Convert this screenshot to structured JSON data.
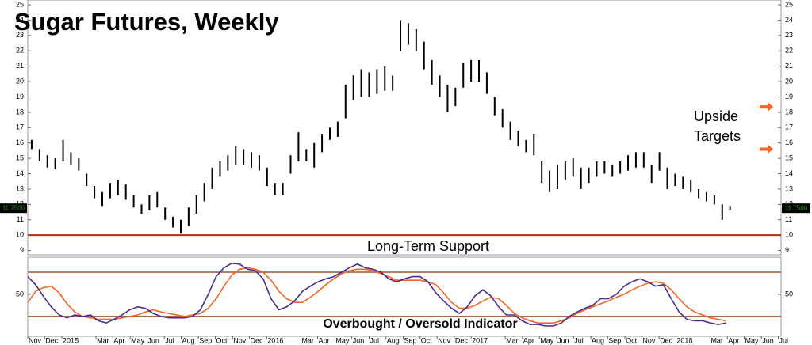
{
  "chart_data": [
    {
      "type": "ohlc",
      "title": "Sugar Futures, Weekly",
      "color": "#000000",
      "x": [
        1,
        3,
        5,
        7,
        9,
        11,
        13,
        15,
        17,
        19,
        21,
        23,
        25,
        27,
        29,
        31,
        33,
        35,
        37,
        39,
        41,
        43,
        45,
        47,
        49,
        51,
        53,
        55,
        57,
        59,
        61,
        63,
        65,
        67,
        69,
        71,
        73,
        75,
        77,
        79,
        81,
        83,
        85,
        87,
        89,
        91,
        93,
        95,
        97,
        99,
        101,
        103,
        105,
        107,
        109,
        111,
        113,
        115,
        117,
        119,
        121,
        123,
        125,
        127,
        129,
        131,
        133,
        135,
        137,
        139,
        141,
        143,
        145,
        147,
        149,
        151,
        153,
        155,
        157,
        159,
        161,
        163,
        165,
        167,
        169,
        171,
        173,
        175,
        177,
        179
      ],
      "high": [
        16.2,
        15.6,
        15.2,
        15.0,
        16.2,
        15.4,
        15.0,
        14.0,
        13.2,
        12.8,
        13.4,
        13.6,
        13.3,
        12.6,
        12.0,
        12.6,
        12.8,
        11.8,
        11.2,
        11.0,
        11.8,
        12.6,
        13.4,
        14.4,
        14.8,
        15.2,
        15.8,
        15.6,
        15.4,
        15.2,
        14.4,
        13.4,
        13.4,
        15.2,
        16.7,
        15.6,
        16.0,
        16.6,
        17.0,
        17.4,
        19.8,
        20.4,
        20.8,
        20.6,
        20.8,
        21.0,
        20.4,
        24.0,
        23.8,
        23.4,
        22.6,
        21.4,
        20.4,
        19.8,
        19.6,
        21.2,
        21.4,
        21.4,
        20.6,
        19.0,
        18.2,
        17.4,
        16.8,
        16.2,
        16.6,
        14.8,
        14.2,
        14.6,
        14.8,
        15.0,
        14.4,
        14.4,
        14.8,
        14.8,
        14.6,
        14.8,
        15.2,
        15.4,
        15.4,
        14.6,
        15.4,
        14.4,
        14.0,
        13.8,
        13.6,
        13.0,
        12.8,
        12.6,
        12.0,
        11.9
      ],
      "low": [
        15.6,
        14.8,
        14.4,
        14.3,
        14.8,
        14.6,
        14.2,
        13.2,
        12.4,
        11.9,
        12.4,
        12.6,
        12.3,
        11.8,
        11.4,
        11.6,
        11.8,
        11.0,
        10.5,
        10.1,
        10.6,
        11.4,
        12.2,
        13.0,
        13.8,
        14.2,
        14.6,
        14.6,
        14.4,
        14.2,
        13.2,
        12.6,
        12.6,
        14.0,
        14.8,
        14.8,
        14.4,
        15.4,
        16.2,
        16.4,
        17.6,
        18.8,
        19.0,
        19.0,
        19.2,
        19.4,
        19.4,
        22.0,
        22.4,
        22.0,
        20.8,
        19.8,
        19.0,
        18.0,
        18.4,
        19.6,
        20.0,
        20.0,
        19.2,
        17.8,
        17.0,
        16.2,
        15.8,
        15.4,
        15.2,
        13.4,
        12.8,
        13.0,
        13.6,
        13.8,
        13.0,
        13.4,
        13.8,
        14.0,
        13.8,
        14.0,
        14.2,
        14.4,
        14.4,
        13.4,
        14.2,
        13.0,
        13.2,
        13.0,
        12.8,
        12.4,
        12.2,
        12.0,
        11.0,
        11.6
      ],
      "xlim": [
        0,
        192
      ],
      "ylim": [
        8.72,
        25.31
      ],
      "yticks": [
        9,
        10,
        11,
        12,
        13,
        14,
        15,
        16,
        17,
        18,
        19,
        20,
        21,
        22,
        23,
        24,
        25
      ],
      "last_value": 11.75,
      "last_value_label": "11.7500",
      "last_value_color": "#00a000",
      "support": 10,
      "support_label": "Long-Term Support",
      "support_color": "#a0331a",
      "targets": [
        18.35,
        15.6
      ],
      "target_label": [
        "Upside",
        "Targets"
      ],
      "target_color": "#f26522"
    },
    {
      "type": "line",
      "title": "Overbought / Oversold Indicator",
      "x": [
        0,
        2,
        4,
        6,
        8,
        10,
        12,
        14,
        16,
        18,
        20,
        22,
        24,
        26,
        28,
        30,
        32,
        34,
        36,
        38,
        40,
        42,
        44,
        46,
        48,
        50,
        52,
        54,
        56,
        58,
        60,
        62,
        64,
        66,
        68,
        70,
        72,
        74,
        76,
        78,
        80,
        82,
        84,
        86,
        88,
        90,
        92,
        94,
        96,
        98,
        100,
        102,
        104,
        106,
        108,
        110,
        112,
        114,
        116,
        118,
        120,
        122,
        124,
        126,
        128,
        130,
        132,
        134,
        136,
        138,
        140,
        142,
        144,
        146,
        148,
        150,
        152,
        154,
        156,
        158,
        160,
        162,
        164,
        166,
        168,
        170,
        172,
        174,
        176,
        178
      ],
      "series": [
        {
          "color": "#4b2c8c",
          "values": [
            74,
            63,
            47,
            33,
            22,
            18,
            22,
            20,
            22,
            14,
            11,
            16,
            22,
            29,
            33,
            31,
            24,
            20,
            18,
            18,
            18,
            20,
            29,
            50,
            74,
            86,
            92,
            91,
            84,
            82,
            71,
            44,
            29,
            33,
            41,
            54,
            61,
            67,
            71,
            74,
            80,
            86,
            91,
            86,
            84,
            80,
            71,
            67,
            71,
            74,
            74,
            67,
            52,
            41,
            31,
            24,
            33,
            48,
            56,
            48,
            33,
            22,
            22,
            14,
            9,
            9,
            7,
            7,
            11,
            20,
            26,
            31,
            35,
            44,
            44,
            50,
            61,
            67,
            71,
            67,
            61,
            63,
            44,
            26,
            16,
            14,
            14,
            11,
            9,
            11
          ]
        },
        {
          "color": "#f26522",
          "values": [
            39,
            54,
            59,
            61,
            52,
            37,
            26,
            20,
            18,
            16,
            16,
            16,
            18,
            20,
            22,
            26,
            29,
            26,
            24,
            22,
            20,
            22,
            24,
            31,
            44,
            61,
            76,
            84,
            86,
            84,
            80,
            69,
            54,
            44,
            39,
            39,
            46,
            54,
            63,
            71,
            78,
            82,
            84,
            84,
            82,
            78,
            74,
            69,
            69,
            69,
            69,
            67,
            63,
            52,
            39,
            31,
            31,
            35,
            41,
            46,
            44,
            35,
            24,
            18,
            14,
            11,
            11,
            11,
            14,
            18,
            24,
            29,
            33,
            37,
            41,
            46,
            50,
            56,
            61,
            65,
            67,
            65,
            56,
            44,
            33,
            26,
            22,
            18,
            16,
            14
          ]
        }
      ],
      "xlim": [
        0,
        192
      ],
      "ylim": [
        -7,
        100.4
      ],
      "yticks": [
        50
      ],
      "levels": [
        80,
        20
      ],
      "level_color": "#a0522d",
      "xticks": [
        {
          "value": 0,
          "label": "Nov"
        },
        {
          "value": 4.3,
          "label": "Dec"
        },
        {
          "value": 8.7,
          "label": "2015"
        },
        {
          "value": 17.4,
          "label": "Mar"
        },
        {
          "value": 21.7,
          "label": "Apr"
        },
        {
          "value": 26.1,
          "label": "May"
        },
        {
          "value": 30.4,
          "label": "Jun"
        },
        {
          "value": 34.8,
          "label": "Jul"
        },
        {
          "value": 39.1,
          "label": "Aug"
        },
        {
          "value": 43.5,
          "label": "Sep"
        },
        {
          "value": 47.8,
          "label": "Oct"
        },
        {
          "value": 52.2,
          "label": "Nov"
        },
        {
          "value": 56.5,
          "label": "Dec"
        },
        {
          "value": 60.9,
          "label": "2016"
        },
        {
          "value": 69.6,
          "label": "Mar"
        },
        {
          "value": 73.9,
          "label": "Apr"
        },
        {
          "value": 78.3,
          "label": "May"
        },
        {
          "value": 82.6,
          "label": "Jun"
        },
        {
          "value": 87,
          "label": "Jul"
        },
        {
          "value": 91.3,
          "label": "Aug"
        },
        {
          "value": 95.7,
          "label": "Sep"
        },
        {
          "value": 100,
          "label": "Oct"
        },
        {
          "value": 104.3,
          "label": "Nov"
        },
        {
          "value": 108.7,
          "label": "Dec"
        },
        {
          "value": 113,
          "label": "2017"
        },
        {
          "value": 121.7,
          "label": "Mar"
        },
        {
          "value": 126.1,
          "label": "Apr"
        },
        {
          "value": 130.4,
          "label": "May"
        },
        {
          "value": 134.8,
          "label": "Jun"
        },
        {
          "value": 139.1,
          "label": "Jul"
        },
        {
          "value": 143.5,
          "label": "Aug"
        },
        {
          "value": 147.8,
          "label": "Sep"
        },
        {
          "value": 152.2,
          "label": "Oct"
        },
        {
          "value": 156.5,
          "label": "Nov"
        },
        {
          "value": 160.9,
          "label": "Dec"
        },
        {
          "value": 165.2,
          "label": "2018"
        },
        {
          "value": 173.9,
          "label": "Mar"
        },
        {
          "value": 178.3,
          "label": "Apr"
        },
        {
          "value": 182.6,
          "label": "May"
        },
        {
          "value": 187,
          "label": "Jun"
        },
        {
          "value": 191.3,
          "label": "Jul"
        }
      ]
    }
  ]
}
